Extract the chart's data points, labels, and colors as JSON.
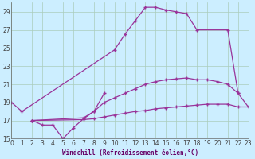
{
  "xlabel": "Windchill (Refroidissement éolien,°C)",
  "bg_color": "#cceeff",
  "line_color": "#993399",
  "grid_color": "#aaccbb",
  "xlim": [
    0,
    23
  ],
  "ylim": [
    15,
    30
  ],
  "xticks": [
    0,
    1,
    2,
    3,
    4,
    5,
    6,
    7,
    8,
    9,
    10,
    11,
    12,
    13,
    14,
    15,
    16,
    17,
    18,
    19,
    20,
    21,
    22,
    23
  ],
  "yticks": [
    15,
    17,
    19,
    21,
    23,
    25,
    27,
    29
  ],
  "lines": [
    {
      "x": [
        0,
        1,
        10,
        11,
        12,
        13,
        14,
        15,
        16,
        17,
        18,
        21,
        22,
        23
      ],
      "y": [
        19.0,
        18.0,
        24.8,
        26.5,
        28.0,
        29.5,
        29.5,
        29.2,
        29.0,
        28.8,
        27.0,
        27.0,
        20.0,
        18.5
      ]
    },
    {
      "x": [
        2,
        3,
        4,
        5,
        6,
        7,
        8,
        9
      ],
      "y": [
        17.0,
        16.5,
        16.5,
        15.0,
        16.2,
        17.2,
        18.0,
        20.0
      ]
    },
    {
      "x": [
        2,
        7,
        8,
        9,
        10,
        11,
        12,
        13,
        14,
        15,
        16,
        17,
        18,
        19,
        20,
        21,
        22
      ],
      "y": [
        17.0,
        17.3,
        18.0,
        19.0,
        19.5,
        20.0,
        20.5,
        21.0,
        21.3,
        21.5,
        21.6,
        21.7,
        21.5,
        21.5,
        21.3,
        21.0,
        20.0
      ]
    },
    {
      "x": [
        2,
        7,
        8,
        9,
        10,
        11,
        12,
        13,
        14,
        15,
        16,
        17,
        18,
        19,
        20,
        21,
        22,
        23
      ],
      "y": [
        17.0,
        17.1,
        17.2,
        17.4,
        17.6,
        17.8,
        18.0,
        18.1,
        18.3,
        18.4,
        18.5,
        18.6,
        18.7,
        18.8,
        18.8,
        18.8,
        18.5,
        18.5
      ]
    }
  ]
}
